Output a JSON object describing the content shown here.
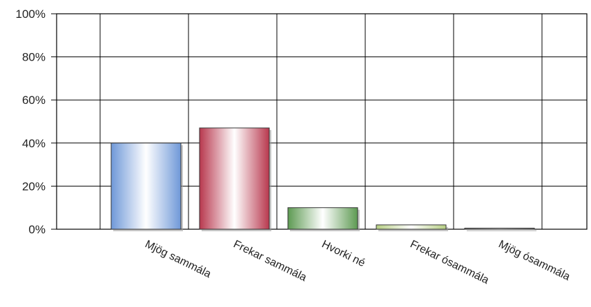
{
  "chart_data": {
    "type": "bar",
    "categories": [
      "Mjög sammála",
      "Frekar sammála",
      "Hvorki né",
      "Frekar ósammála",
      "Mjög ósammála"
    ],
    "values": [
      40,
      47,
      10,
      2,
      0.5
    ],
    "ylim": [
      0,
      100
    ],
    "yticks": [
      "0%",
      "20%",
      "40%",
      "60%",
      "80%",
      "100%"
    ],
    "ytick_values": [
      0,
      20,
      40,
      60,
      80,
      100
    ],
    "grid": true,
    "title": "",
    "xlabel": "",
    "ylabel": "",
    "colors": [
      "#6f98d8",
      "#b8384e",
      "#5d9a52",
      "#b7cf84",
      "#8a8a8a"
    ]
  }
}
